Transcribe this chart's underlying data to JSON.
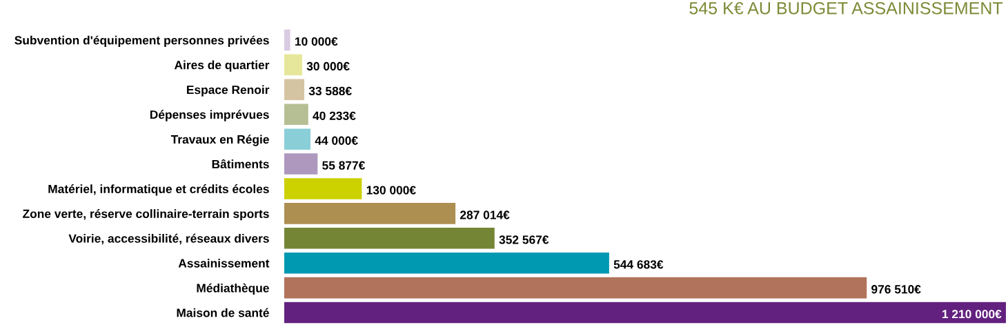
{
  "chart_data": {
    "type": "bar",
    "orientation": "horizontal",
    "categories": [
      "Subvention d'équipement personnes privées",
      "Aires de quartier",
      "Espace Renoir",
      "Dépenses imprévues",
      "Travaux en Régie",
      "Bâtiments",
      "Matériel, informatique et crédits écoles",
      "Zone verte, réserve collinaire-terrain sports",
      "Voirie, accessibilité, réseaux divers",
      "Assainissement",
      "Médiathèque",
      "Maison de santé"
    ],
    "values": [
      10000,
      30000,
      33588,
      40233,
      44000,
      55877,
      130000,
      287014,
      352567,
      544683,
      976510,
      1210000
    ],
    "value_labels": [
      "10 000€",
      "30 000€",
      "33 588€",
      "40 233€",
      "44 000€",
      "55 877€",
      "130 000€",
      "287 014€",
      "352 567€",
      "544 683€",
      "976 510€",
      "1 210 000€"
    ],
    "colors": [
      "#d9cbe1",
      "#e6e79a",
      "#d5c4a2",
      "#b6bf94",
      "#8acfd8",
      "#ae98bd",
      "#ccd100",
      "#ad8f52",
      "#748636",
      "#0099b2",
      "#b1735c",
      "#63217f"
    ],
    "xlim": [
      0,
      1210000
    ],
    "tick_labels": "y",
    "grid": false,
    "annotations": [
      "545 K€ AU BUDGET ASSAINISSEMENT"
    ]
  }
}
